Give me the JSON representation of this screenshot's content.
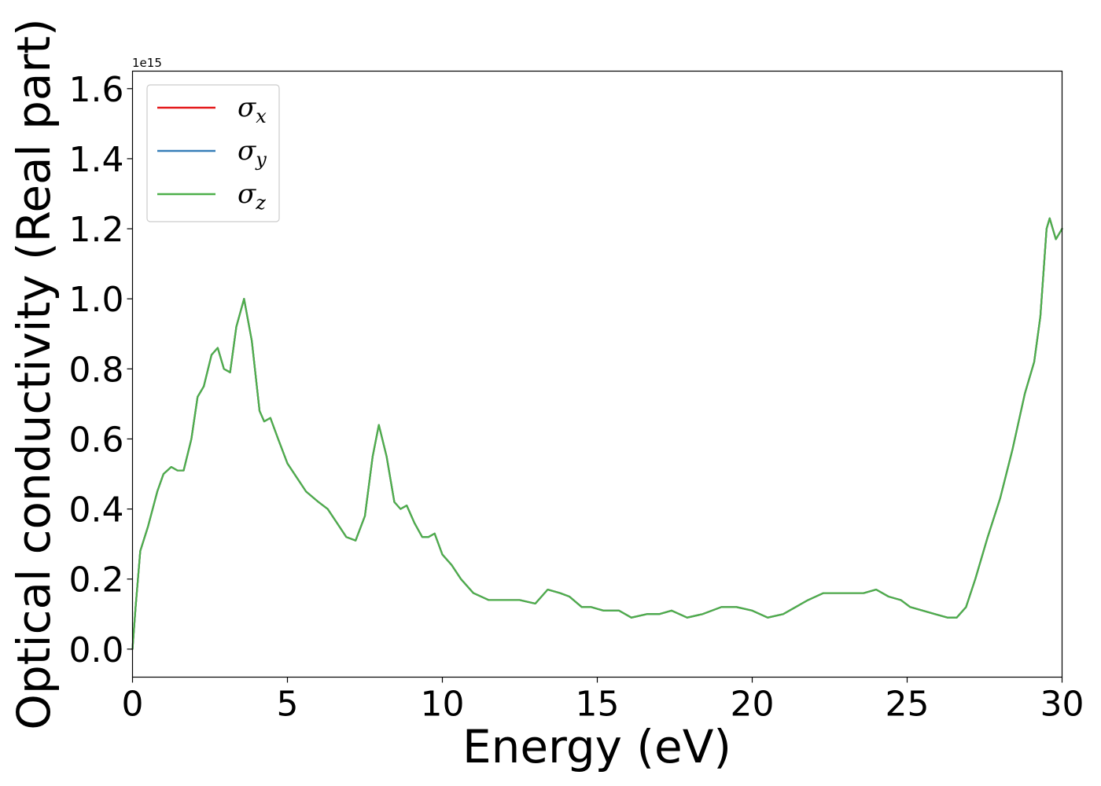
{
  "chart_data": {
    "type": "line",
    "xlabel": "Energy (eV)",
    "ylabel": "Optical conductivity (Real part)",
    "y_offset_text": "1e15",
    "y_multiplier": 1000000000000000.0,
    "xlim": [
      0,
      30
    ],
    "ylim": [
      -0.08,
      1.65
    ],
    "xticks": [
      0,
      5,
      10,
      15,
      20,
      25,
      30
    ],
    "xtick_labels": [
      "0",
      "5",
      "10",
      "15",
      "20",
      "25",
      "30"
    ],
    "yticks": [
      0.0,
      0.2,
      0.4,
      0.6,
      0.8,
      1.0,
      1.2,
      1.4,
      1.6
    ],
    "ytick_labels": [
      "0.0",
      "0.2",
      "0.4",
      "0.6",
      "0.8",
      "1.0",
      "1.2",
      "1.4",
      "1.6"
    ],
    "grid": false,
    "legend_position": "top-left",
    "x": [
      0,
      0.1,
      0.25,
      0.5,
      0.8,
      1.0,
      1.25,
      1.45,
      1.65,
      1.9,
      2.1,
      2.3,
      2.55,
      2.75,
      2.95,
      3.15,
      3.35,
      3.6,
      3.85,
      4.1,
      4.25,
      4.45,
      4.7,
      5.0,
      5.3,
      5.6,
      6.0,
      6.3,
      6.6,
      6.9,
      7.2,
      7.5,
      7.75,
      7.95,
      8.2,
      8.45,
      8.65,
      8.85,
      9.1,
      9.35,
      9.55,
      9.75,
      10.0,
      10.3,
      10.6,
      11.0,
      11.5,
      12.0,
      12.5,
      13.0,
      13.4,
      13.8,
      14.1,
      14.5,
      14.8,
      15.2,
      15.7,
      16.1,
      16.6,
      17.0,
      17.4,
      17.9,
      18.4,
      19.0,
      19.5,
      20.0,
      20.5,
      21.0,
      21.4,
      21.8,
      22.3,
      22.8,
      23.2,
      23.6,
      24.0,
      24.4,
      24.8,
      25.1,
      25.5,
      25.9,
      26.3,
      26.6,
      26.9,
      27.2,
      27.6,
      28.0,
      28.4,
      28.8,
      29.1,
      29.3,
      29.5,
      29.6,
      29.8,
      30.0
    ],
    "series": [
      {
        "name": "σ_x",
        "label_base": "σ",
        "label_sub": "x",
        "color": "#e41a1c",
        "y": [
          0.0,
          0.12,
          0.28,
          0.35,
          0.45,
          0.5,
          0.52,
          0.51,
          0.51,
          0.6,
          0.72,
          0.75,
          0.84,
          0.86,
          0.8,
          0.79,
          0.92,
          1.0,
          0.88,
          0.68,
          0.65,
          0.66,
          0.6,
          0.53,
          0.49,
          0.45,
          0.42,
          0.4,
          0.36,
          0.32,
          0.31,
          0.38,
          0.55,
          0.64,
          0.55,
          0.42,
          0.4,
          0.41,
          0.36,
          0.32,
          0.32,
          0.33,
          0.27,
          0.24,
          0.2,
          0.16,
          0.14,
          0.14,
          0.14,
          0.13,
          0.17,
          0.16,
          0.15,
          0.12,
          0.12,
          0.11,
          0.11,
          0.09,
          0.1,
          0.1,
          0.11,
          0.09,
          0.1,
          0.12,
          0.12,
          0.11,
          0.09,
          0.1,
          0.12,
          0.14,
          0.16,
          0.16,
          0.16,
          0.16,
          0.17,
          0.15,
          0.14,
          0.12,
          0.11,
          0.1,
          0.09,
          0.09,
          0.12,
          0.2,
          0.32,
          0.43,
          0.57,
          0.73,
          0.82,
          0.95,
          1.2,
          1.23,
          1.17,
          1.2
        ]
      },
      {
        "name": "σ_y",
        "label_base": "σ",
        "label_sub": "y",
        "color": "#377eb8",
        "y": [
          0.0,
          0.12,
          0.28,
          0.35,
          0.45,
          0.5,
          0.52,
          0.51,
          0.51,
          0.6,
          0.72,
          0.75,
          0.84,
          0.86,
          0.8,
          0.79,
          0.92,
          1.0,
          0.88,
          0.68,
          0.65,
          0.66,
          0.6,
          0.53,
          0.49,
          0.45,
          0.42,
          0.4,
          0.36,
          0.32,
          0.31,
          0.38,
          0.55,
          0.64,
          0.55,
          0.42,
          0.4,
          0.41,
          0.36,
          0.32,
          0.32,
          0.33,
          0.27,
          0.24,
          0.2,
          0.16,
          0.14,
          0.14,
          0.14,
          0.13,
          0.17,
          0.16,
          0.15,
          0.12,
          0.12,
          0.11,
          0.11,
          0.09,
          0.1,
          0.1,
          0.11,
          0.09,
          0.1,
          0.12,
          0.12,
          0.11,
          0.09,
          0.1,
          0.12,
          0.14,
          0.16,
          0.16,
          0.16,
          0.16,
          0.17,
          0.15,
          0.14,
          0.12,
          0.11,
          0.1,
          0.09,
          0.09,
          0.12,
          0.2,
          0.32,
          0.43,
          0.57,
          0.73,
          0.82,
          0.95,
          1.2,
          1.23,
          1.17,
          1.2
        ]
      },
      {
        "name": "σ_z",
        "label_base": "σ",
        "label_sub": "z",
        "color": "#4daf4a",
        "y": [
          0.0,
          0.12,
          0.28,
          0.35,
          0.45,
          0.5,
          0.52,
          0.51,
          0.51,
          0.6,
          0.72,
          0.75,
          0.84,
          0.86,
          0.8,
          0.79,
          0.92,
          1.0,
          0.88,
          0.68,
          0.65,
          0.66,
          0.6,
          0.53,
          0.49,
          0.45,
          0.42,
          0.4,
          0.36,
          0.32,
          0.31,
          0.38,
          0.55,
          0.64,
          0.55,
          0.42,
          0.4,
          0.41,
          0.36,
          0.32,
          0.32,
          0.33,
          0.27,
          0.24,
          0.2,
          0.16,
          0.14,
          0.14,
          0.14,
          0.13,
          0.17,
          0.16,
          0.15,
          0.12,
          0.12,
          0.11,
          0.11,
          0.09,
          0.1,
          0.1,
          0.11,
          0.09,
          0.1,
          0.12,
          0.12,
          0.11,
          0.09,
          0.1,
          0.12,
          0.14,
          0.16,
          0.16,
          0.16,
          0.16,
          0.17,
          0.15,
          0.14,
          0.12,
          0.11,
          0.1,
          0.09,
          0.09,
          0.12,
          0.2,
          0.32,
          0.43,
          0.57,
          0.73,
          0.82,
          0.95,
          1.2,
          1.23,
          1.17,
          1.2
        ]
      }
    ]
  }
}
